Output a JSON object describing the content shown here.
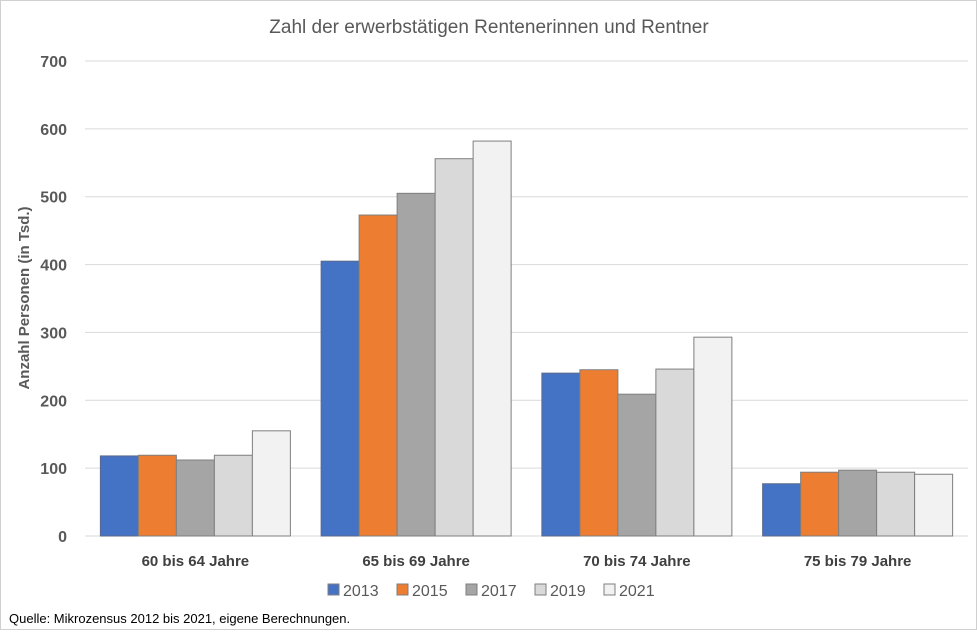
{
  "chart_data": {
    "type": "bar",
    "title": "Zahl der erwerbstätigen Rentenerinnen und Rentner",
    "xlabel": "",
    "ylabel": "Anzahl Personen (in Tsd.)",
    "ylim": [
      0,
      700
    ],
    "yticks": [
      "0",
      "100",
      "200",
      "300",
      "400",
      "500",
      "600",
      "700"
    ],
    "grid": true,
    "legend_position": "bottom",
    "categories": [
      "60 bis 64 Jahre",
      "65 bis 69 Jahre",
      "70 bis 74 Jahre",
      "75 bis 79 Jahre"
    ],
    "series": [
      {
        "name": "2013",
        "color": "#4472C4",
        "values": [
          118,
          405,
          240,
          77
        ]
      },
      {
        "name": "2015",
        "color": "#ED7D31",
        "values": [
          119,
          473,
          245,
          94
        ]
      },
      {
        "name": "2017",
        "color": "#A5A5A5",
        "values": [
          112,
          505,
          209,
          97
        ]
      },
      {
        "name": "2019",
        "color": "#D9D9D9",
        "values": [
          119,
          556,
          246,
          94
        ]
      },
      {
        "name": "2021",
        "color": "#F2F2F2",
        "values": [
          155,
          582,
          293,
          91
        ]
      }
    ]
  },
  "source": "Quelle: Mikrozensus 2012 bis 2021, eigene Berechnungen."
}
